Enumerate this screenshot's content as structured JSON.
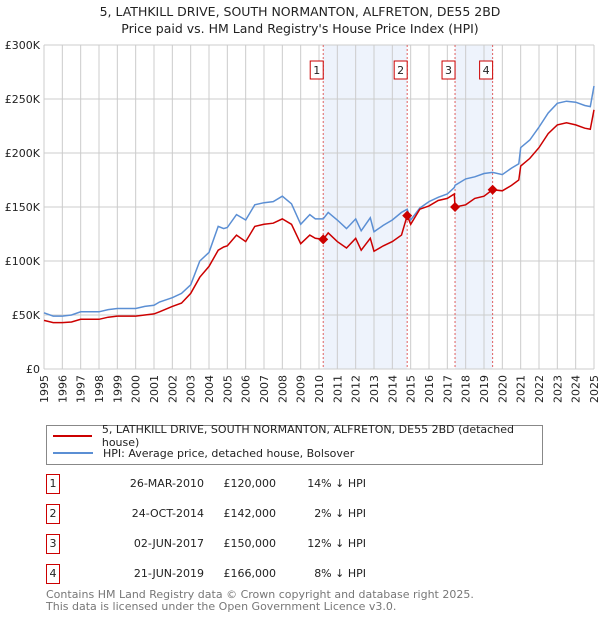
{
  "title": "5, LATHKILL DRIVE, SOUTH NORMANTON, ALFRETON, DE55 2BD",
  "subtitle": "Price paid vs. HM Land Registry's House Price Index (HPI)",
  "colors": {
    "property": "#cc0000",
    "hpi": "#5b8fd4",
    "shade": "#eef3fc",
    "marker": "#cc0000"
  },
  "chart_data": {
    "type": "line",
    "xlim": [
      1995,
      2025
    ],
    "ylim": [
      0,
      300000
    ],
    "yticks": [
      {
        "v": 0,
        "label": "£0"
      },
      {
        "v": 50000,
        "label": "£50K"
      },
      {
        "v": 100000,
        "label": "£100K"
      },
      {
        "v": 150000,
        "label": "£150K"
      },
      {
        "v": 200000,
        "label": "£200K"
      },
      {
        "v": 250000,
        "label": "£250K"
      },
      {
        "v": 300000,
        "label": "£300K"
      }
    ],
    "xticks": [
      "1995",
      "1996",
      "1997",
      "1998",
      "1999",
      "2000",
      "2001",
      "2002",
      "2003",
      "2004",
      "2005",
      "2006",
      "2007",
      "2008",
      "2009",
      "2010",
      "2011",
      "2012",
      "2013",
      "2014",
      "2015",
      "2016",
      "2017",
      "2018",
      "2019",
      "2020",
      "2021",
      "2022",
      "2023",
      "2024",
      "2025"
    ],
    "grid": true,
    "series": [
      {
        "name": "5, LATHKILL DRIVE, SOUTH NORMANTON, ALFRETON, DE55 2BD (detached house)",
        "key": "property",
        "x": [
          1995,
          1995.5,
          1996,
          1996.5,
          1997,
          1998,
          1998.5,
          1999,
          2000,
          2000.5,
          2001,
          2001.3,
          2002,
          2002.5,
          2003,
          2003.5,
          2004,
          2004.5,
          2004.8,
          2005,
          2005.5,
          2006,
          2006.5,
          2007,
          2007.5,
          2008,
          2008.5,
          2009,
          2009.5,
          2009.8,
          2010.23,
          2010.5,
          2011,
          2011.5,
          2012,
          2012.3,
          2012.8,
          2013,
          2013.5,
          2014,
          2014.5,
          2014.81,
          2015,
          2015.5,
          2016,
          2016.5,
          2017,
          2017.38,
          2017.42,
          2018,
          2018.5,
          2019,
          2019.47,
          2020,
          2020.5,
          2020.9,
          2021,
          2021.5,
          2022,
          2022.5,
          2023,
          2023.5,
          2024,
          2024.5,
          2024.8,
          2025
        ],
        "y": [
          45000,
          43000,
          43000,
          43500,
          46000,
          46000,
          48000,
          49000,
          49000,
          50000,
          51000,
          53000,
          58000,
          61000,
          70000,
          85000,
          95000,
          110000,
          113000,
          114000,
          124000,
          118000,
          132000,
          134000,
          135000,
          139000,
          134000,
          116000,
          124000,
          121000,
          120000,
          126000,
          118000,
          112000,
          121000,
          110000,
          121000,
          109000,
          114000,
          118000,
          124000,
          142000,
          134000,
          148000,
          151000,
          156000,
          158000,
          162000,
          150000,
          152000,
          158000,
          160000,
          166000,
          165000,
          170000,
          175000,
          188000,
          195000,
          205000,
          218000,
          226000,
          228000,
          226000,
          223000,
          222000,
          240000
        ]
      },
      {
        "name": "HPI: Average price, detached house, Bolsover",
        "key": "hpi",
        "x": [
          1995,
          1995.5,
          1996,
          1996.5,
          1997,
          1998,
          1998.5,
          1999,
          2000,
          2000.5,
          2001,
          2001.3,
          2002,
          2002.5,
          2003,
          2003.5,
          2004,
          2004.5,
          2004.8,
          2005,
          2005.5,
          2006,
          2006.5,
          2007,
          2007.5,
          2008,
          2008.5,
          2009,
          2009.5,
          2009.8,
          2010.23,
          2010.5,
          2011,
          2011.5,
          2012,
          2012.3,
          2012.8,
          2013,
          2013.5,
          2014,
          2014.5,
          2014.81,
          2015,
          2015.5,
          2016,
          2016.5,
          2017,
          2017.38,
          2017.42,
          2018,
          2018.5,
          2019,
          2019.47,
          2020,
          2020.5,
          2020.9,
          2021,
          2021.5,
          2022,
          2022.5,
          2023,
          2023.5,
          2024,
          2024.5,
          2024.8,
          2025
        ],
        "y": [
          52000,
          49000,
          49000,
          50000,
          53000,
          53000,
          55000,
          56000,
          56000,
          58000,
          59000,
          62000,
          66000,
          70000,
          78000,
          100000,
          108000,
          132000,
          130000,
          131000,
          143000,
          138000,
          152000,
          154000,
          155000,
          160000,
          153000,
          134000,
          143000,
          139000,
          139000,
          145000,
          138000,
          130000,
          139000,
          128000,
          140000,
          127000,
          133000,
          138000,
          145000,
          148000,
          138000,
          149000,
          155000,
          159000,
          162000,
          168000,
          170000,
          176000,
          178000,
          181000,
          182000,
          180000,
          186000,
          190000,
          205000,
          212000,
          224000,
          237000,
          246000,
          248000,
          247000,
          244000,
          243000,
          262000
        ]
      }
    ],
    "sales": [
      {
        "n": "1",
        "x": 2010.23,
        "y": 120000
      },
      {
        "n": "2",
        "x": 2014.81,
        "y": 142000
      },
      {
        "n": "3",
        "x": 2017.42,
        "y": 150000
      },
      {
        "n": "4",
        "x": 2019.47,
        "y": 166000
      }
    ],
    "shaded": [
      [
        2010.23,
        2014.81
      ],
      [
        2017.42,
        2019.47
      ]
    ]
  },
  "legend": {
    "property": "5, LATHKILL DRIVE, SOUTH NORMANTON, ALFRETON, DE55 2BD (detached house)",
    "hpi": "HPI: Average price, detached house, Bolsover"
  },
  "table": [
    {
      "n": "1",
      "date": "26-MAR-2010",
      "price": "£120,000",
      "hpi": "14% ↓ HPI"
    },
    {
      "n": "2",
      "date": "24-OCT-2014",
      "price": "£142,000",
      "hpi": "2% ↓ HPI"
    },
    {
      "n": "3",
      "date": "02-JUN-2017",
      "price": "£150,000",
      "hpi": "12% ↓ HPI"
    },
    {
      "n": "4",
      "date": "21-JUN-2019",
      "price": "£166,000",
      "hpi": "8% ↓ HPI"
    }
  ],
  "footer": [
    "Contains HM Land Registry data © Crown copyright and database right 2025.",
    "This data is licensed under the Open Government Licence v3.0."
  ]
}
